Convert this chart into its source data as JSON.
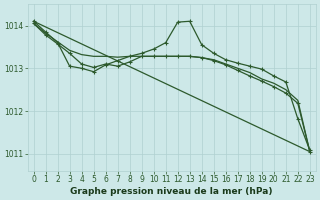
{
  "background_color": "#cde8e8",
  "grid_color": "#b0d0d0",
  "line_color": "#2d5a2d",
  "xlabel": "Graphe pression niveau de la mer (hPa)",
  "ylim": [
    1010.6,
    1014.5
  ],
  "xlim": [
    -0.5,
    23.5
  ],
  "yticks": [
    1011,
    1012,
    1013,
    1014
  ],
  "xticks": [
    0,
    1,
    2,
    3,
    4,
    5,
    6,
    7,
    8,
    9,
    10,
    11,
    12,
    13,
    14,
    15,
    16,
    17,
    18,
    19,
    20,
    21,
    22,
    23
  ],
  "series": [
    {
      "x": [
        0,
        23
      ],
      "y": [
        1014.1,
        1011.05
      ],
      "marker": null,
      "linestyle": "-",
      "linewidth": 0.9
    },
    {
      "x": [
        0,
        1,
        2,
        3,
        4,
        5,
        6,
        7,
        8,
        9,
        10,
        11,
        12,
        13,
        14,
        15,
        16,
        17,
        18,
        19,
        20,
        21,
        22,
        23
      ],
      "y": [
        1014.05,
        1013.82,
        1013.62,
        1013.42,
        1013.32,
        1013.28,
        1013.28,
        1013.26,
        1013.28,
        1013.28,
        1013.28,
        1013.28,
        1013.28,
        1013.28,
        1013.25,
        1013.2,
        1013.1,
        1013.0,
        1012.9,
        1012.75,
        1012.65,
        1012.5,
        1012.25,
        1011.05
      ],
      "marker": null,
      "linestyle": "-",
      "linewidth": 0.9
    },
    {
      "x": [
        0,
        1,
        2,
        3,
        4,
        5,
        6,
        7,
        8,
        9,
        10,
        11,
        12,
        13,
        14,
        15,
        16,
        17,
        18,
        19,
        20,
        21,
        22,
        23
      ],
      "y": [
        1014.05,
        1013.78,
        1013.57,
        1013.35,
        1013.1,
        1013.02,
        1013.1,
        1013.05,
        1013.15,
        1013.28,
        1013.28,
        1013.28,
        1013.28,
        1013.28,
        1013.25,
        1013.18,
        1013.08,
        1012.95,
        1012.82,
        1012.7,
        1012.57,
        1012.42,
        1012.18,
        1011.05
      ],
      "marker": "+",
      "markersize": 3.5,
      "linestyle": "-",
      "linewidth": 0.9
    },
    {
      "x": [
        0,
        1,
        2,
        3,
        4,
        5,
        6,
        7,
        8,
        9,
        10,
        11,
        12,
        13,
        14,
        15,
        16,
        17,
        18,
        19,
        20,
        21,
        22,
        23
      ],
      "y": [
        1014.1,
        1013.85,
        1013.6,
        1013.05,
        1013.0,
        1012.92,
        1013.08,
        1013.18,
        1013.28,
        1013.35,
        1013.45,
        1013.6,
        1014.08,
        1014.1,
        1013.55,
        1013.35,
        1013.2,
        1013.12,
        1013.05,
        1012.98,
        1012.82,
        1012.68,
        1011.82,
        1011.08
      ],
      "marker": "+",
      "markersize": 3.5,
      "linestyle": "-",
      "linewidth": 0.9
    }
  ],
  "tick_fontsize": 5.5,
  "xlabel_fontsize": 6.5,
  "tick_color": "#2d5a2d",
  "xlabel_color": "#1a3a1a"
}
